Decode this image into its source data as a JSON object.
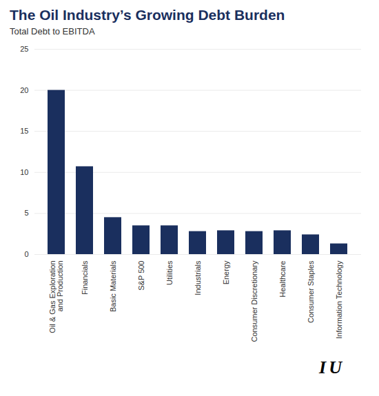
{
  "chart_data": {
    "type": "bar",
    "title": "The Oil Industry’s Growing Debt Burden",
    "subtitle": "Total Debt to EBITDA",
    "categories": [
      "Oil & Gas Exploration\nand Production",
      "Financials",
      "Basic Materials",
      "S&P 500",
      "Utilities",
      "Industrials",
      "Energy",
      "Consumer Discretionary",
      "Healthcare",
      "Consumer Staples",
      "Information Technology"
    ],
    "values": [
      20.0,
      10.7,
      4.5,
      3.5,
      3.5,
      2.8,
      2.9,
      2.8,
      2.9,
      2.4,
      1.3
    ],
    "color": "#1a2f5e",
    "ylim": [
      0,
      25
    ],
    "yticks": [
      0,
      5,
      10,
      15,
      20,
      25
    ],
    "grid": true,
    "annotations": [
      "I",
      "U"
    ]
  }
}
